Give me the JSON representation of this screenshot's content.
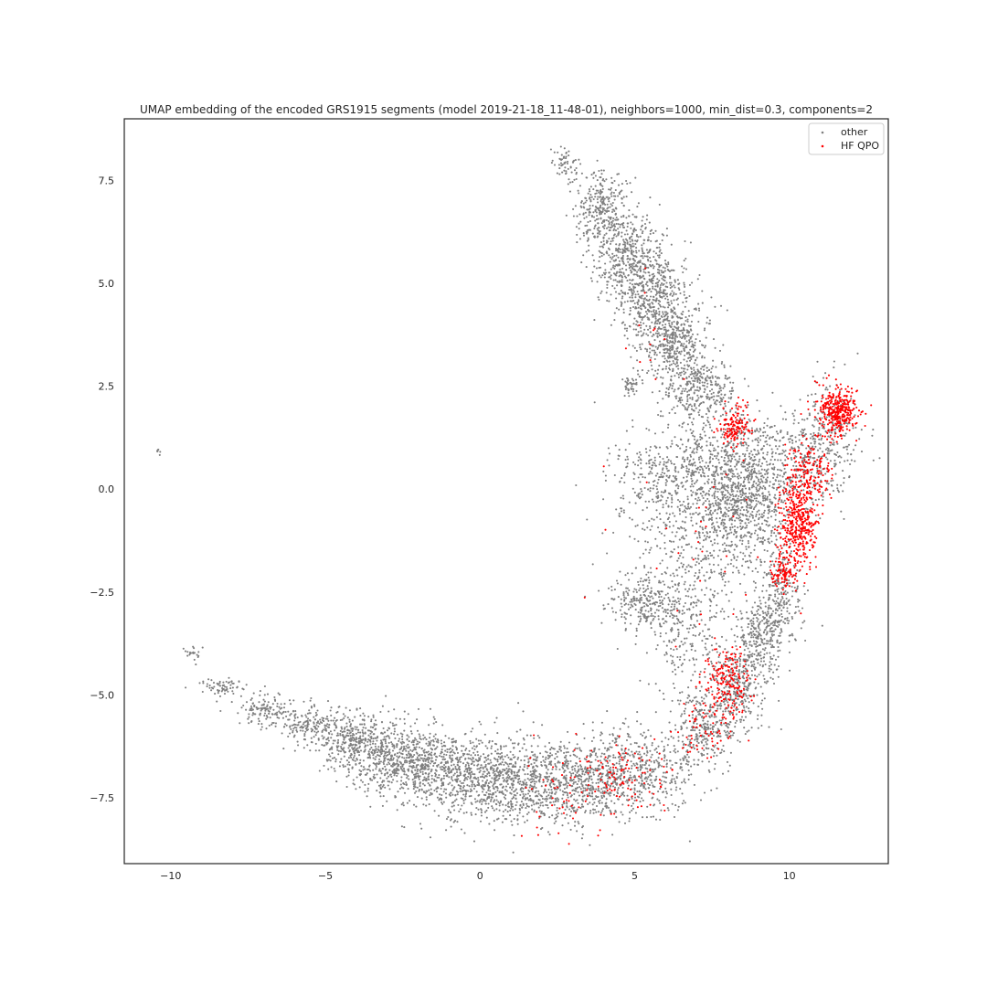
{
  "chart_data": {
    "type": "scatter",
    "title": "UMAP embedding of the encoded GRS1915 segments (model 2019-21-18_11-48-01), neighbors=1000, min_dist=0.3, components=2",
    "xlabel": "",
    "ylabel": "",
    "xlim": [
      -11.5,
      13.2
    ],
    "ylim": [
      -9.1,
      9.0
    ],
    "xticks": [
      -10,
      -5,
      0,
      5,
      10
    ],
    "xtick_labels": [
      "−10",
      "−5",
      "0",
      "5",
      "10"
    ],
    "yticks": [
      -7.5,
      -5.0,
      -2.5,
      0.0,
      2.5,
      5.0,
      7.5
    ],
    "ytick_labels": [
      "−7.5",
      "−5.0",
      "−2.5",
      "0.0",
      "2.5",
      "5.0",
      "7.5"
    ],
    "grid": false,
    "legend_position": "top-right",
    "series": [
      {
        "name": "other",
        "color": "#7f7f7f",
        "regions": [
          {
            "x": 2.8,
            "y": 7.9,
            "sx": 0.25,
            "sy": 0.2,
            "n": 60
          },
          {
            "x": 4.0,
            "y": 6.8,
            "sx": 0.45,
            "sy": 0.45,
            "n": 320
          },
          {
            "x": 4.8,
            "y": 5.6,
            "sx": 0.55,
            "sy": 0.5,
            "n": 420
          },
          {
            "x": 5.6,
            "y": 4.6,
            "sx": 0.6,
            "sy": 0.5,
            "n": 460
          },
          {
            "x": 6.3,
            "y": 3.5,
            "sx": 0.55,
            "sy": 0.45,
            "n": 420
          },
          {
            "x": 7.2,
            "y": 2.4,
            "sx": 0.55,
            "sy": 0.4,
            "n": 320
          },
          {
            "x": 4.9,
            "y": 2.5,
            "sx": 0.15,
            "sy": 0.12,
            "n": 40
          },
          {
            "x": 8.3,
            "y": 0.6,
            "sx": 0.9,
            "sy": 0.6,
            "n": 520
          },
          {
            "x": 8.5,
            "y": -0.4,
            "sx": 0.7,
            "sy": 0.6,
            "n": 520
          },
          {
            "x": 7.0,
            "y": -1.2,
            "sx": 1.2,
            "sy": 1.3,
            "n": 650
          },
          {
            "x": 5.8,
            "y": 0.4,
            "sx": 0.8,
            "sy": 0.5,
            "n": 220
          },
          {
            "x": 5.3,
            "y": -2.8,
            "sx": 0.6,
            "sy": 0.3,
            "n": 220
          },
          {
            "x": 6.5,
            "y": -3.5,
            "sx": 0.6,
            "sy": 0.7,
            "n": 180
          },
          {
            "x": 9.7,
            "y": -2.5,
            "sx": 0.35,
            "sy": 0.6,
            "n": 220
          },
          {
            "x": 9.1,
            "y": -3.5,
            "sx": 0.35,
            "sy": 0.5,
            "n": 260
          },
          {
            "x": 8.4,
            "y": -4.7,
            "sx": 0.45,
            "sy": 0.5,
            "n": 300
          },
          {
            "x": 7.3,
            "y": -5.8,
            "sx": 0.55,
            "sy": 0.45,
            "n": 320
          },
          {
            "x": 10.6,
            "y": 0.7,
            "sx": 0.7,
            "sy": 0.7,
            "n": 260
          },
          {
            "x": 11.3,
            "y": 1.5,
            "sx": 0.5,
            "sy": 0.6,
            "n": 160
          },
          {
            "x": 5.0,
            "y": -6.9,
            "sx": 0.9,
            "sy": 0.5,
            "n": 520
          },
          {
            "x": 3.0,
            "y": -7.2,
            "sx": 0.9,
            "sy": 0.5,
            "n": 520
          },
          {
            "x": 1.0,
            "y": -7.1,
            "sx": 0.9,
            "sy": 0.5,
            "n": 620
          },
          {
            "x": -1.0,
            "y": -6.9,
            "sx": 0.9,
            "sy": 0.5,
            "n": 600
          },
          {
            "x": -2.8,
            "y": -6.5,
            "sx": 0.8,
            "sy": 0.45,
            "n": 520
          },
          {
            "x": -4.2,
            "y": -6.1,
            "sx": 0.6,
            "sy": 0.35,
            "n": 300
          },
          {
            "x": -5.6,
            "y": -5.7,
            "sx": 0.45,
            "sy": 0.22,
            "n": 160
          },
          {
            "x": -6.9,
            "y": -5.4,
            "sx": 0.4,
            "sy": 0.2,
            "n": 130
          },
          {
            "x": -8.2,
            "y": -4.8,
            "sx": 0.5,
            "sy": 0.12,
            "n": 70
          },
          {
            "x": -9.3,
            "y": -4.0,
            "sx": 0.15,
            "sy": 0.1,
            "n": 20
          },
          {
            "x": -10.4,
            "y": 0.9,
            "sx": 0.03,
            "sy": 0.05,
            "n": 8
          }
        ]
      },
      {
        "name": "HF QPO",
        "color": "#ff0000",
        "regions": [
          {
            "x": 11.6,
            "y": 1.9,
            "sx": 0.35,
            "sy": 0.3,
            "n": 360
          },
          {
            "x": 10.3,
            "y": -0.8,
            "sx": 0.3,
            "sy": 0.6,
            "n": 420
          },
          {
            "x": 10.7,
            "y": 0.3,
            "sx": 0.35,
            "sy": 0.4,
            "n": 160
          },
          {
            "x": 8.2,
            "y": 1.5,
            "sx": 0.25,
            "sy": 0.25,
            "n": 140
          },
          {
            "x": 9.8,
            "y": -2.1,
            "sx": 0.2,
            "sy": 0.2,
            "n": 90
          },
          {
            "x": 8.0,
            "y": -4.7,
            "sx": 0.35,
            "sy": 0.4,
            "n": 190
          },
          {
            "x": 7.3,
            "y": -5.8,
            "sx": 0.5,
            "sy": 0.4,
            "n": 60
          },
          {
            "x": 4.5,
            "y": -7.0,
            "sx": 0.8,
            "sy": 0.5,
            "n": 110
          },
          {
            "x": 2.5,
            "y": -7.3,
            "sx": 0.6,
            "sy": 0.5,
            "n": 40
          },
          {
            "x": 7.0,
            "y": -1.5,
            "sx": 1.2,
            "sy": 1.3,
            "n": 30
          },
          {
            "x": 5.5,
            "y": 3.5,
            "sx": 0.6,
            "sy": 1.2,
            "n": 12
          }
        ]
      }
    ]
  }
}
